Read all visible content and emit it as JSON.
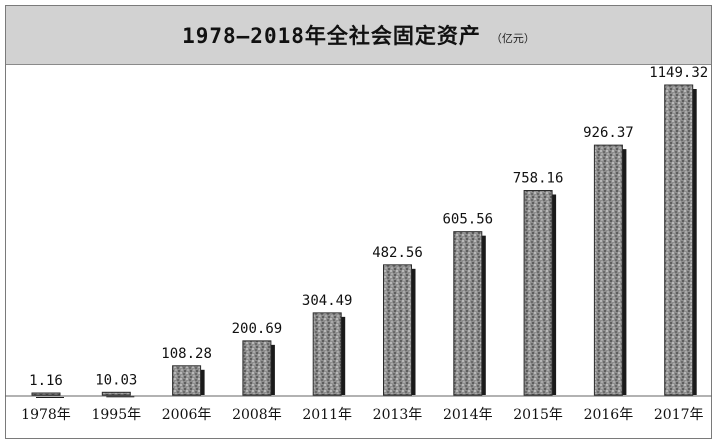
{
  "chart_data": {
    "type": "bar",
    "title": "1978–2018年全社会固定资产",
    "unit": "（亿元）",
    "categories": [
      "1978年",
      "1995年",
      "2006年",
      "2008年",
      "2011年",
      "2013年",
      "2014年",
      "2015年",
      "2016年",
      "2017年"
    ],
    "values": [
      1.16,
      10.03,
      108.28,
      200.69,
      304.49,
      482.56,
      605.56,
      758.16,
      926.37,
      1149.32
    ],
    "value_labels": [
      "1.16",
      "10.03",
      "108.28",
      "200.69",
      "304.49",
      "482.56",
      "605.56",
      "758.16",
      "926.37",
      "1149.32"
    ],
    "xlabel": "",
    "ylabel": "",
    "ylim": [
      0,
      1200
    ],
    "grid": false,
    "colors": {
      "bar": "#8c8c8c",
      "bar_shadow": "#1a1a1a",
      "title_band": "#d2d2d2"
    }
  }
}
